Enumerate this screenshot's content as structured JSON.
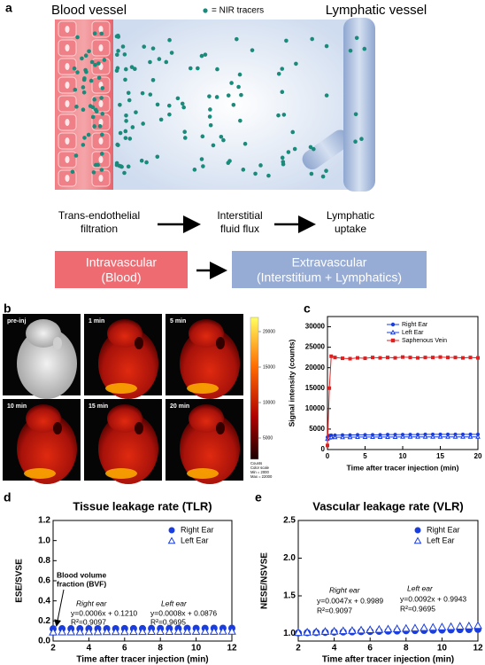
{
  "panel_labels": [
    "a",
    "b",
    "c",
    "d",
    "e"
  ],
  "diagram": {
    "blood_vessel": "Blood vessel",
    "tracer_legend": "= NIR tracers",
    "lymphatic_vessel": "Lymphatic vessel",
    "steps": [
      [
        "Trans-endothelial",
        "filtration"
      ],
      [
        "Interstitial",
        "fluid flux"
      ],
      [
        "Lymphatic",
        "uptake"
      ]
    ],
    "compartments": [
      [
        "Intravascular",
        "(Blood)"
      ],
      [
        "Extravascular",
        "(Interstitium + Lymphatics)"
      ]
    ]
  },
  "imaging": {
    "times": [
      "pre-inj",
      "1 min",
      "5 min",
      "10 min",
      "15 min",
      "20 min"
    ],
    "colorbar": {
      "range": [
        2000,
        22000
      ],
      "ticks": [
        5000,
        10000,
        15000,
        20000
      ],
      "notes": [
        "Counts",
        "Color scale",
        "Min = 2000",
        "Max = 22000"
      ]
    }
  },
  "chart_data": [
    {
      "type": "line",
      "xlabel": "Time after tracer injection (min)",
      "ylabel": "Signal intensity (counts)",
      "x": [
        0,
        0.25,
        0.5,
        1,
        2,
        3,
        4,
        5,
        6,
        7,
        8,
        9,
        10,
        11,
        12,
        13,
        14,
        15,
        16,
        17,
        18,
        19,
        20
      ],
      "xlim": [
        0,
        20
      ],
      "xticks": [
        0,
        5,
        10,
        15,
        20
      ],
      "ylim": [
        0,
        32500
      ],
      "yticks": [
        0,
        5000,
        10000,
        15000,
        20000,
        25000,
        30000
      ],
      "legend": "upper right",
      "series": [
        {
          "name": "Right Ear",
          "color": "#1a3de0",
          "marker": "circle",
          "values": [
            3000,
            3400,
            3500,
            3500,
            3550,
            3550,
            3600,
            3600,
            3600,
            3600,
            3650,
            3650,
            3650,
            3650,
            3650,
            3700,
            3700,
            3700,
            3700,
            3700,
            3700,
            3700,
            3700
          ]
        },
        {
          "name": "Left Ear",
          "color": "#1a3de0",
          "marker": "triangle",
          "values": [
            2600,
            2900,
            3000,
            3000,
            3000,
            3000,
            3050,
            3050,
            3050,
            3050,
            3050,
            3050,
            3100,
            3100,
            3100,
            3100,
            3100,
            3100,
            3100,
            3100,
            3100,
            3100,
            3100
          ]
        },
        {
          "name": "Saphenous Vein",
          "color": "#e02020",
          "marker": "square",
          "values": [
            1000,
            15000,
            22800,
            22500,
            22300,
            22200,
            22400,
            22300,
            22500,
            22400,
            22500,
            22400,
            22600,
            22500,
            22400,
            22500,
            22500,
            22600,
            22500,
            22500,
            22400,
            22500,
            22400
          ]
        }
      ]
    },
    {
      "type": "scatter",
      "title": "Tissue leakage rate (TLR)",
      "xlabel": "Time after tracer injection (min)",
      "ylabel": "ESE/SVSE",
      "x": [
        2,
        2.5,
        3,
        3.5,
        4,
        4.5,
        5,
        5.5,
        6,
        6.5,
        7,
        7.5,
        8,
        8.5,
        9,
        9.5,
        10,
        10.5,
        11,
        11.5,
        12
      ],
      "xlim": [
        2,
        12
      ],
      "xticks": [
        2,
        4,
        6,
        8,
        10,
        12
      ],
      "ylim": [
        0,
        1.2
      ],
      "yticks": [
        {
          "value": 0,
          "label": "0.0"
        },
        0.2,
        0.4,
        0.6,
        0.8,
        {
          "value": 1,
          "label": "1.0"
        },
        1.2
      ],
      "legend": "upper right",
      "annotations": [
        "Blood volume",
        "fraction (BVF)",
        "Right ear",
        "y=0.0006x + 0.1210",
        "R²=0.9097",
        "Left ear",
        "y=0.0008x + 0.0876",
        "R²=0.9695"
      ],
      "series": [
        {
          "name": "Right Ear",
          "color": "#1a3de0",
          "marker": "circle",
          "values": [
            0.122,
            0.123,
            0.123,
            0.123,
            0.123,
            0.124,
            0.124,
            0.124,
            0.125,
            0.125,
            0.125,
            0.126,
            0.126,
            0.126,
            0.126,
            0.127,
            0.127,
            0.127,
            0.128,
            0.128,
            0.128
          ]
        },
        {
          "name": "Left Ear",
          "color": "#1a3de0",
          "marker": "triangle",
          "values": [
            0.089,
            0.09,
            0.09,
            0.09,
            0.091,
            0.091,
            0.092,
            0.092,
            0.092,
            0.093,
            0.093,
            0.094,
            0.094,
            0.094,
            0.095,
            0.095,
            0.096,
            0.096,
            0.096,
            0.097,
            0.097
          ]
        }
      ]
    },
    {
      "type": "scatter",
      "title": "Vascular leakage rate (VLR)",
      "xlabel": "Time after tracer injection (min)",
      "ylabel": "NESE/NSVSE",
      "x": [
        2,
        2.5,
        3,
        3.5,
        4,
        4.5,
        5,
        5.5,
        6,
        6.5,
        7,
        7.5,
        8,
        8.5,
        9,
        9.5,
        10,
        10.5,
        11,
        11.5,
        12
      ],
      "xlim": [
        2,
        12
      ],
      "xticks": [
        2,
        4,
        6,
        8,
        10,
        12
      ],
      "ylim": [
        0.9,
        2.5
      ],
      "yticks": [
        {
          "value": 1,
          "label": "1.0"
        },
        1.5,
        {
          "value": 2,
          "label": "2.0"
        },
        2.5
      ],
      "legend": "upper right",
      "annotations": [
        "Right ear",
        "y=0.0047x + 0.9989",
        "R²=0.9097",
        "Left ear",
        "y=0.0092x + 0.9943",
        "R²=0.9695"
      ],
      "series": [
        {
          "name": "Right Ear",
          "color": "#1a3de0",
          "marker": "circle",
          "values": [
            1.008,
            1.011,
            1.013,
            1.015,
            1.018,
            1.02,
            1.022,
            1.025,
            1.027,
            1.029,
            1.032,
            1.034,
            1.037,
            1.039,
            1.041,
            1.044,
            1.046,
            1.048,
            1.051,
            1.053,
            1.055
          ]
        },
        {
          "name": "Left Ear",
          "color": "#1a3de0",
          "marker": "triangle",
          "values": [
            1.013,
            1.017,
            1.022,
            1.027,
            1.031,
            1.036,
            1.04,
            1.045,
            1.05,
            1.054,
            1.059,
            1.063,
            1.068,
            1.072,
            1.077,
            1.082,
            1.086,
            1.091,
            1.096,
            1.1,
            1.105
          ]
        }
      ]
    }
  ]
}
